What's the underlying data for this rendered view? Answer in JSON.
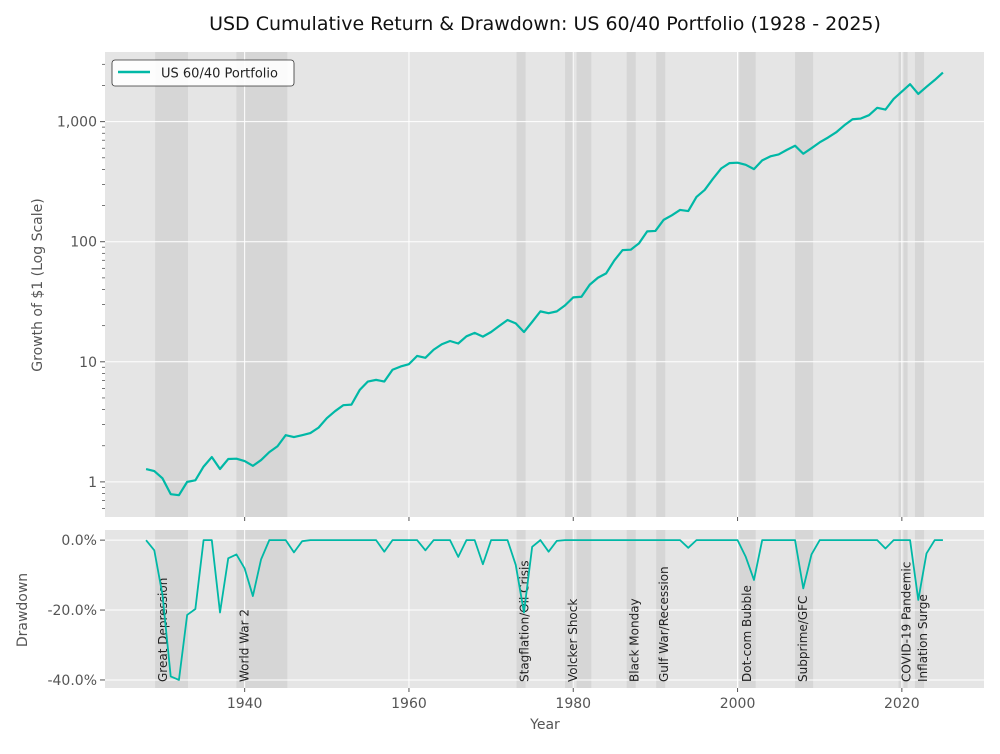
{
  "chart_data": [
    {
      "type": "line",
      "title": "USD Cumulative Return & Drawdown: US 60/40 Portfolio (1928 - 2025)",
      "xlabel": "",
      "ylabel": "Growth of $1 (Log Scale)",
      "yscale": "log",
      "xlim": [
        1923,
        2030
      ],
      "ylim": [
        0.51,
        3800
      ],
      "yticks": [
        1,
        10,
        100,
        1000
      ],
      "ytick_labels": [
        "1",
        "10",
        "100",
        "1,000"
      ],
      "grid": true,
      "legend": {
        "position": "top-left",
        "entries": [
          "US 60/40 Portfolio"
        ]
      },
      "series": [
        {
          "name": "US 60/40 Portfolio",
          "color": "#00b8a6",
          "x": [
            1928,
            1929,
            1930,
            1931,
            1932,
            1933,
            1934,
            1935,
            1936,
            1937,
            1938,
            1939,
            1940,
            1941,
            1942,
            1943,
            1944,
            1945,
            1946,
            1947,
            1948,
            1949,
            1950,
            1951,
            1952,
            1953,
            1954,
            1955,
            1956,
            1957,
            1958,
            1959,
            1960,
            1961,
            1962,
            1963,
            1964,
            1965,
            1966,
            1967,
            1968,
            1969,
            1970,
            1971,
            1972,
            1973,
            1974,
            1975,
            1976,
            1977,
            1978,
            1979,
            1980,
            1981,
            1982,
            1983,
            1984,
            1985,
            1986,
            1987,
            1988,
            1989,
            1990,
            1991,
            1992,
            1993,
            1994,
            1995,
            1996,
            1997,
            1998,
            1999,
            2000,
            2001,
            2002,
            2003,
            2004,
            2005,
            2006,
            2007,
            2008,
            2009,
            2010,
            2011,
            2012,
            2013,
            2014,
            2015,
            2016,
            2017,
            2018,
            2019,
            2020,
            2021,
            2022,
            2023,
            2024,
            2025
          ],
          "y": [
            1.28,
            1.23,
            1.07,
            0.79,
            0.775,
            1.0,
            1.03,
            1.34,
            1.61,
            1.28,
            1.55,
            1.56,
            1.49,
            1.36,
            1.52,
            1.77,
            1.98,
            2.45,
            2.36,
            2.45,
            2.55,
            2.83,
            3.39,
            3.88,
            4.35,
            4.4,
            5.82,
            6.85,
            7.07,
            6.85,
            8.58,
            9.14,
            9.56,
            11.2,
            10.8,
            12.6,
            14.0,
            14.9,
            14.2,
            16.3,
            17.4,
            16.2,
            17.7,
            19.9,
            22.3,
            20.9,
            17.7,
            21.5,
            26.3,
            25.4,
            26.3,
            29.5,
            34.4,
            34.8,
            43.8,
            50.1,
            54.5,
            69.8,
            85.1,
            85.8,
            96.9,
            122,
            123,
            152,
            166,
            184,
            180,
            236,
            270,
            334,
            407,
            451,
            455,
            437,
            402,
            476,
            514,
            533,
            582,
            630,
            540,
            601,
            672,
            736,
            814,
            932,
            1046,
            1061,
            1131,
            1303,
            1259,
            1546,
            1780,
            2050,
            1700,
            1950,
            2220,
            2560
          ]
        }
      ]
    },
    {
      "type": "line",
      "xlabel": "Year",
      "ylabel": "Drawdown",
      "xlim": [
        1923,
        2030
      ],
      "ylim": [
        -42.3,
        2.9
      ],
      "xticks": [
        1940,
        1960,
        1980,
        2000,
        2020
      ],
      "xtick_labels": [
        "1940",
        "1960",
        "1980",
        "2000",
        "2020"
      ],
      "yticks": [
        0,
        -20,
        -40
      ],
      "ytick_labels": [
        "0.0%",
        "-20.0%",
        "-40.0%"
      ],
      "grid": true,
      "series": [
        {
          "color": "#00b8a6",
          "x_same_as_above": true,
          "y": [
            0,
            -2.9,
            -15.7,
            -39,
            -40,
            -21.4,
            -19.7,
            0,
            0,
            -20.7,
            -5.2,
            -4.1,
            -8.1,
            -16,
            -5.5,
            0,
            0,
            0,
            -3.5,
            -0.3,
            0,
            0,
            0,
            0,
            0,
            0,
            0,
            0,
            0,
            -3.3,
            0,
            0,
            0,
            0,
            -2.9,
            0,
            0,
            0,
            -4.8,
            0,
            0,
            -6.9,
            0,
            0,
            0,
            -7.1,
            -20.7,
            -1.9,
            0,
            -3.3,
            -0.2,
            0,
            0,
            0,
            0,
            0,
            0,
            0,
            0,
            0,
            0,
            0,
            0,
            0,
            0,
            0,
            -2.2,
            0,
            0,
            0,
            0,
            0,
            0,
            -4.8,
            -11.4,
            0,
            0,
            0,
            0,
            0,
            -13.8,
            -4.1,
            0,
            0,
            0,
            0,
            0,
            0,
            0,
            0,
            -2.4,
            0,
            0,
            0,
            -17.1,
            -3.8,
            0,
            0
          ]
        }
      ]
    }
  ],
  "crisis_periods": [
    {
      "label": "Great Depression",
      "start": 1929.1,
      "end": 1933.1
    },
    {
      "label": "World War 2",
      "start": 1939.0,
      "end": 1945.2
    },
    {
      "label": "Stagflation/Oil Crisis",
      "start": 1973.1,
      "end": 1974.2
    },
    {
      "label": "Volcker Shock",
      "start": 1979.0,
      "end": 1980.1,
      "extra_band": [
        1980.4,
        1982.2
      ]
    },
    {
      "label": "Black Monday",
      "start": 1986.5,
      "end": 1987.6
    },
    {
      "label": "Gulf War/Recession",
      "start": 1990.1,
      "end": 1991.2
    },
    {
      "label": "Dot-com Bubble",
      "start": 2000.2,
      "end": 2002.2
    },
    {
      "label": "Subprime/GFC",
      "start": 2007.0,
      "end": 2009.2
    },
    {
      "label": "COVID-19 Pandemic",
      "start": 2019.6,
      "end": 2020.1,
      "extra_band": [
        2020.2,
        2020.7
      ]
    },
    {
      "label": "Inflation Surge",
      "start": 2021.6,
      "end": 2022.7
    }
  ],
  "colors": {
    "panel_bg": "#e5e5e5",
    "band": "#d3d3d3",
    "grid": "#ffffff",
    "line": "#00b8a6"
  }
}
